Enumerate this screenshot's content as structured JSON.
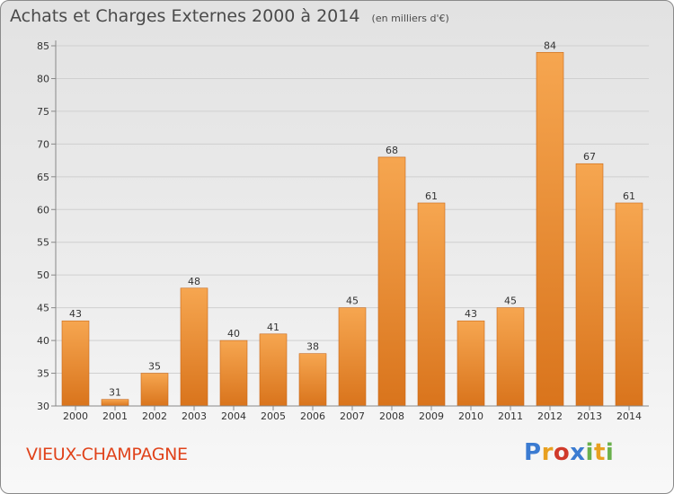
{
  "title": "Achats et Charges Externes 2000 à 2014",
  "unit_note": "(en milliers d'€)",
  "commune": "VIEUX-CHAMPAGNE",
  "logo": {
    "text": "Proxiti",
    "colors": [
      "#3b7bd1",
      "#e8a020",
      "#d03a2a",
      "#3b7bd1",
      "#6ab04c",
      "#e8a020",
      "#6ab04c"
    ]
  },
  "colors": {
    "bar_light": "#f6a650",
    "bar_dark": "#d9741c",
    "axis": "#888888",
    "grid": "#cfcfcf",
    "text": "#333333",
    "commune": "#e0421a"
  },
  "chart_data": {
    "type": "bar",
    "categories": [
      "2000",
      "2001",
      "2002",
      "2003",
      "2004",
      "2005",
      "2006",
      "2007",
      "2008",
      "2009",
      "2010",
      "2011",
      "2012",
      "2013",
      "2014"
    ],
    "values": [
      43,
      31,
      35,
      48,
      40,
      41,
      38,
      45,
      68,
      61,
      43,
      45,
      84,
      67,
      61
    ],
    "ylim": [
      30,
      85
    ],
    "yticks": [
      30,
      35,
      40,
      45,
      50,
      55,
      60,
      65,
      70,
      75,
      80,
      85
    ],
    "grid": true,
    "xlabel": "",
    "ylabel": ""
  }
}
